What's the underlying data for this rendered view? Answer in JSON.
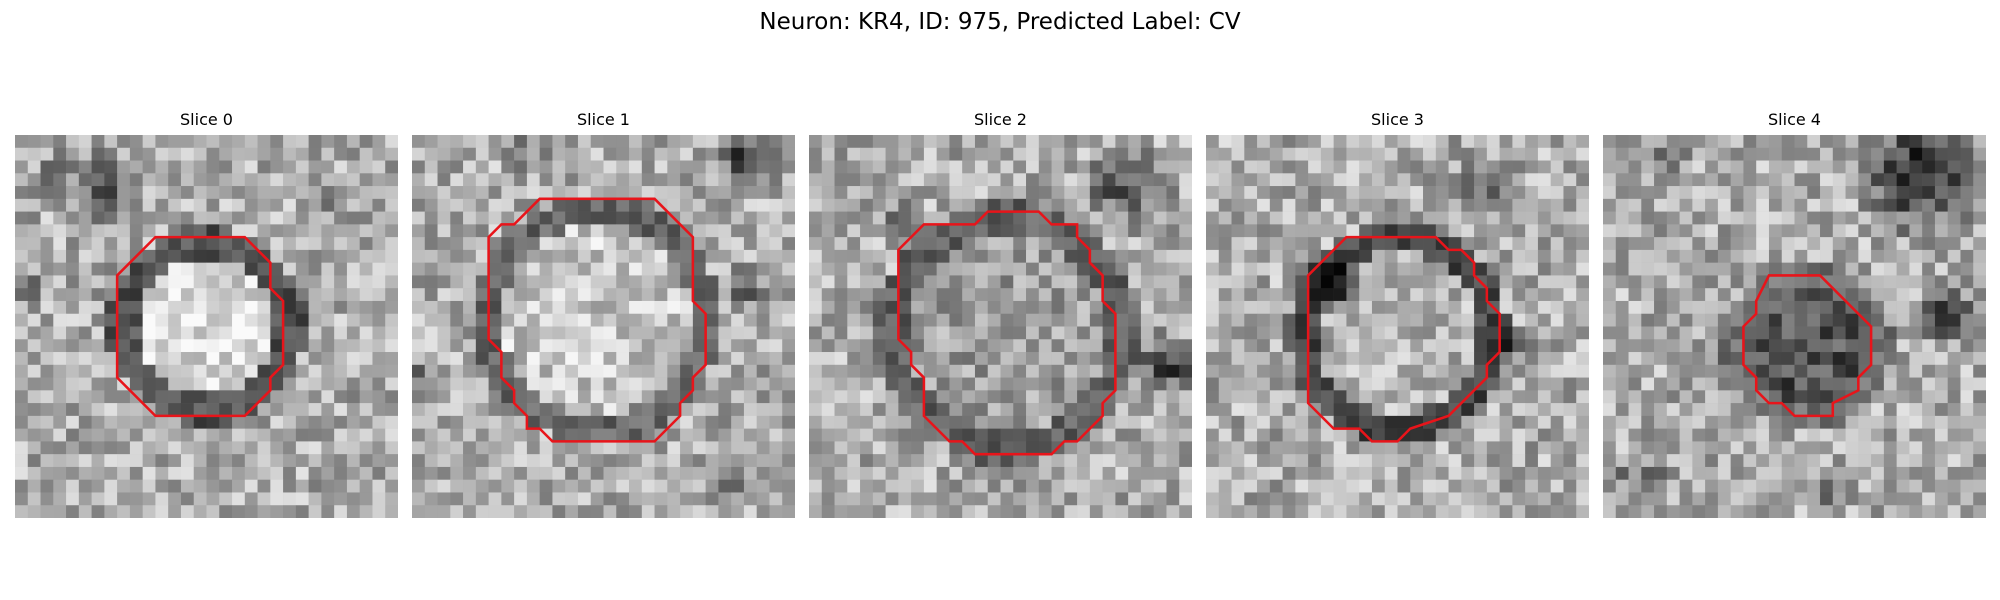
{
  "figure": {
    "title": "Neuron: KR4, ID: 975, Predicted Label: CV",
    "panels": [
      {
        "title": "Slice 0"
      },
      {
        "title": "Slice 1"
      },
      {
        "title": "Slice 2"
      },
      {
        "title": "Slice 3"
      },
      {
        "title": "Slice 4"
      }
    ]
  },
  "colors": {
    "contour": "#e8141a",
    "colormap": "grayscale"
  }
}
